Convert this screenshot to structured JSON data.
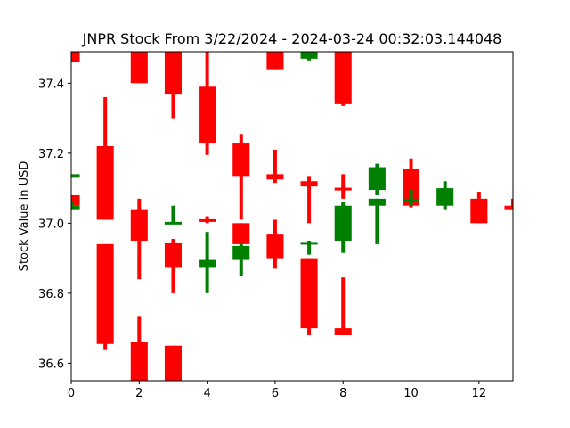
{
  "chart_data": {
    "type": "candlestick",
    "title": "JNPR Stock From 3/22/2024 - 2024-03-24 00:32:03.144048",
    "xlabel": "",
    "ylabel": "Stock Value in USD",
    "xlim": [
      0,
      13
    ],
    "ylim": [
      36.55,
      37.49
    ],
    "xticks": [
      0,
      2,
      4,
      6,
      8,
      10,
      12
    ],
    "yticks": [
      36.6,
      36.8,
      37.0,
      37.2,
      37.4
    ],
    "grid": false,
    "colors": {
      "up": "#008000",
      "down": "#ff0000"
    },
    "candles": [
      {
        "x": 0,
        "open": 37.14,
        "high": 37.14,
        "low": 37.13,
        "close": 37.13,
        "color": "up"
      },
      {
        "x": 0,
        "open": 37.08,
        "high": 37.08,
        "low": 37.04,
        "close": 37.05,
        "color": "down"
      },
      {
        "x": 0,
        "open": 37.05,
        "high": 37.06,
        "low": 37.04,
        "close": 37.04,
        "color": "up"
      },
      {
        "x": 0,
        "open": 37.49,
        "high": 37.49,
        "low": 37.46,
        "close": 37.46,
        "color": "down"
      },
      {
        "x": 1,
        "open": 37.22,
        "high": 37.36,
        "low": 37.01,
        "close": 37.01,
        "color": "down"
      },
      {
        "x": 1,
        "open": 36.94,
        "high": 36.94,
        "low": 36.64,
        "close": 36.655,
        "color": "down"
      },
      {
        "x": 2,
        "open": 37.49,
        "high": 37.49,
        "low": 37.4,
        "close": 37.4,
        "color": "down"
      },
      {
        "x": 2,
        "open": 37.04,
        "high": 37.07,
        "low": 36.84,
        "close": 36.95,
        "color": "down"
      },
      {
        "x": 2,
        "open": 36.66,
        "high": 36.735,
        "low": 36.55,
        "close": 36.55,
        "color": "down"
      },
      {
        "x": 3,
        "open": 37.49,
        "high": 37.49,
        "low": 37.3,
        "close": 37.37,
        "color": "down"
      },
      {
        "x": 3,
        "open": 37.0,
        "high": 37.05,
        "low": 37.0,
        "close": 37.0,
        "color": "up"
      },
      {
        "x": 3,
        "open": 36.945,
        "high": 36.955,
        "low": 36.8,
        "close": 36.875,
        "color": "down"
      },
      {
        "x": 3,
        "open": 36.65,
        "high": 36.65,
        "low": 36.55,
        "close": 36.55,
        "color": "down"
      },
      {
        "x": 4,
        "open": 37.39,
        "high": 37.49,
        "low": 37.195,
        "close": 37.23,
        "color": "down"
      },
      {
        "x": 4,
        "open": 37.01,
        "high": 37.02,
        "low": 37.0,
        "close": 37.005,
        "color": "down"
      },
      {
        "x": 4,
        "open": 36.875,
        "high": 36.975,
        "low": 36.8,
        "close": 36.895,
        "color": "up"
      },
      {
        "x": 5,
        "open": 37.23,
        "high": 37.255,
        "low": 37.01,
        "close": 37.135,
        "color": "down"
      },
      {
        "x": 5,
        "open": 37.0,
        "high": 37.0,
        "low": 36.94,
        "close": 36.94,
        "color": "down"
      },
      {
        "x": 5,
        "open": 36.895,
        "high": 36.945,
        "low": 36.85,
        "close": 36.935,
        "color": "up"
      },
      {
        "x": 6,
        "open": 37.49,
        "high": 37.49,
        "low": 37.44,
        "close": 37.44,
        "color": "down"
      },
      {
        "x": 6,
        "open": 37.14,
        "high": 37.21,
        "low": 37.115,
        "close": 37.125,
        "color": "down"
      },
      {
        "x": 6,
        "open": 36.97,
        "high": 37.01,
        "low": 36.87,
        "close": 36.9,
        "color": "down"
      },
      {
        "x": 7,
        "open": 37.47,
        "high": 37.49,
        "low": 37.465,
        "close": 37.49,
        "color": "up"
      },
      {
        "x": 7,
        "open": 37.12,
        "high": 37.135,
        "low": 37.0,
        "close": 37.105,
        "color": "down"
      },
      {
        "x": 7,
        "open": 36.94,
        "high": 36.95,
        "low": 36.91,
        "close": 36.945,
        "color": "up"
      },
      {
        "x": 7,
        "open": 36.9,
        "high": 36.9,
        "low": 36.68,
        "close": 36.7,
        "color": "down"
      },
      {
        "x": 8,
        "open": 37.49,
        "high": 37.49,
        "low": 37.335,
        "close": 37.34,
        "color": "down"
      },
      {
        "x": 8,
        "open": 37.1,
        "high": 37.14,
        "low": 37.07,
        "close": 37.095,
        "color": "down"
      },
      {
        "x": 8,
        "open": 36.95,
        "high": 37.06,
        "low": 36.915,
        "close": 37.05,
        "color": "up"
      },
      {
        "x": 8,
        "open": 36.7,
        "high": 36.845,
        "low": 36.68,
        "close": 36.68,
        "color": "down"
      },
      {
        "x": 9,
        "open": 37.095,
        "high": 37.17,
        "low": 37.08,
        "close": 37.16,
        "color": "up"
      },
      {
        "x": 9,
        "open": 37.05,
        "high": 37.07,
        "low": 36.94,
        "close": 37.07,
        "color": "up"
      },
      {
        "x": 10,
        "open": 37.155,
        "high": 37.185,
        "low": 37.045,
        "close": 37.05,
        "color": "down"
      },
      {
        "x": 10,
        "open": 37.06,
        "high": 37.095,
        "low": 37.05,
        "close": 37.07,
        "color": "up"
      },
      {
        "x": 11,
        "open": 37.05,
        "high": 37.12,
        "low": 37.04,
        "close": 37.1,
        "color": "up"
      },
      {
        "x": 12,
        "open": 37.07,
        "high": 37.09,
        "low": 37.0,
        "close": 37.0,
        "color": "down"
      },
      {
        "x": 13,
        "open": 37.05,
        "high": 37.07,
        "low": 37.04,
        "close": 37.04,
        "color": "down"
      }
    ]
  }
}
